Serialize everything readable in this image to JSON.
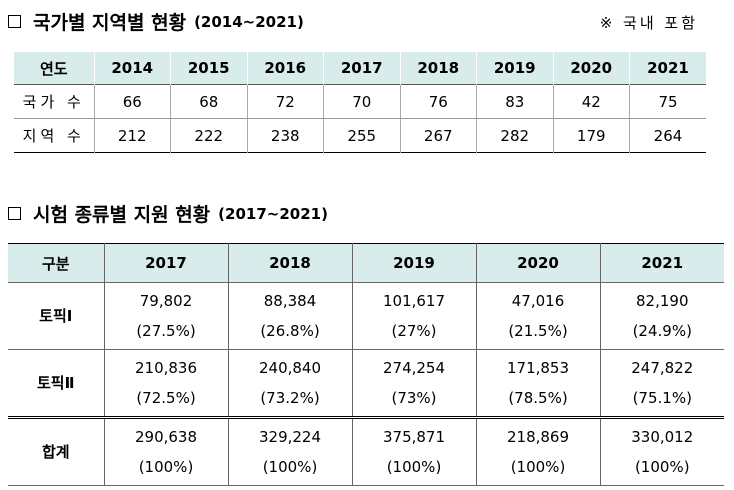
{
  "section1": {
    "title": "국가별 지역별 현황",
    "period": "(2014~2021)",
    "note": "※ 국내 포함",
    "header": {
      "label": "연도",
      "years": [
        "2014",
        "2015",
        "2016",
        "2017",
        "2018",
        "2019",
        "2020",
        "2021"
      ]
    },
    "rows": [
      {
        "label": "국가 수",
        "values": [
          "66",
          "68",
          "72",
          "70",
          "76",
          "83",
          "42",
          "75"
        ]
      },
      {
        "label": "지역 수",
        "values": [
          "212",
          "222",
          "238",
          "255",
          "267",
          "282",
          "179",
          "264"
        ]
      }
    ]
  },
  "section2": {
    "title": "시험 종류별 지원 현황",
    "period": "(2017~2021)",
    "header": {
      "label": "구분",
      "years": [
        "2017",
        "2018",
        "2019",
        "2020",
        "2021"
      ]
    },
    "rows": [
      {
        "label": "토픽Ⅰ",
        "values": [
          "79,802",
          "88,384",
          "101,617",
          "47,016",
          "82,190"
        ],
        "shares": [
          "(27.5%)",
          "(26.8%)",
          "(27%)",
          "(21.5%)",
          "(24.9%)"
        ]
      },
      {
        "label": "토픽Ⅱ",
        "values": [
          "210,836",
          "240,840",
          "274,254",
          "171,853",
          "247,822"
        ],
        "shares": [
          "(72.5%)",
          "(73.2%)",
          "(73%)",
          "(78.5%)",
          "(75.1%)"
        ]
      },
      {
        "label": "합계",
        "values": [
          "290,638",
          "329,224",
          "375,871",
          "218,869",
          "330,012"
        ],
        "shares": [
          "(100%)",
          "(100%)",
          "(100%)",
          "(100%)",
          "(100%)"
        ]
      }
    ]
  }
}
